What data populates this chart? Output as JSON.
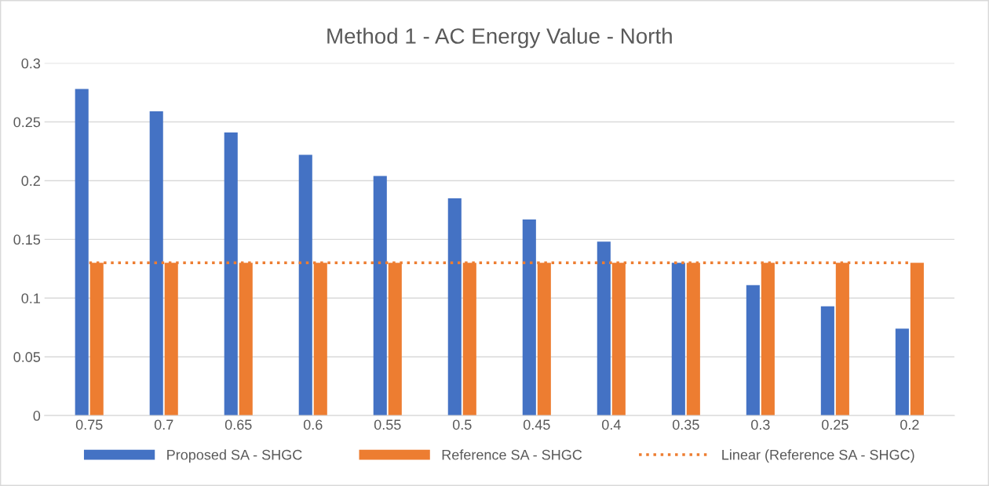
{
  "chart_data": {
    "type": "bar",
    "title": "Method 1 - AC Energy Value - North",
    "categories": [
      "0.75",
      "0.7",
      "0.65",
      "0.6",
      "0.55",
      "0.5",
      "0.45",
      "0.4",
      "0.35",
      "0.3",
      "0.25",
      "0.2"
    ],
    "series": [
      {
        "name": "Proposed SA - SHGC",
        "color": "#4472c4",
        "values": [
          0.278,
          0.259,
          0.241,
          0.222,
          0.204,
          0.185,
          0.167,
          0.148,
          0.13,
          0.111,
          0.093,
          0.074
        ]
      },
      {
        "name": "Reference SA - SHGC",
        "color": "#ed7d31",
        "values": [
          0.13,
          0.13,
          0.13,
          0.13,
          0.13,
          0.13,
          0.13,
          0.13,
          0.13,
          0.13,
          0.13,
          0.13
        ]
      },
      {
        "name": "Linear (Reference SA - SHGC)",
        "type": "line",
        "line_style": "dotted",
        "color": "#ed7d31",
        "values": [
          0.13,
          0.13,
          0.13,
          0.13,
          0.13,
          0.13,
          0.13,
          0.13,
          0.13,
          0.13,
          0.13,
          0.13
        ]
      }
    ],
    "ylim": [
      0,
      0.3
    ],
    "yticks": [
      0,
      0.05,
      0.1,
      0.15,
      0.2,
      0.25,
      0.3
    ],
    "grid": "y",
    "legend": "bottom"
  }
}
